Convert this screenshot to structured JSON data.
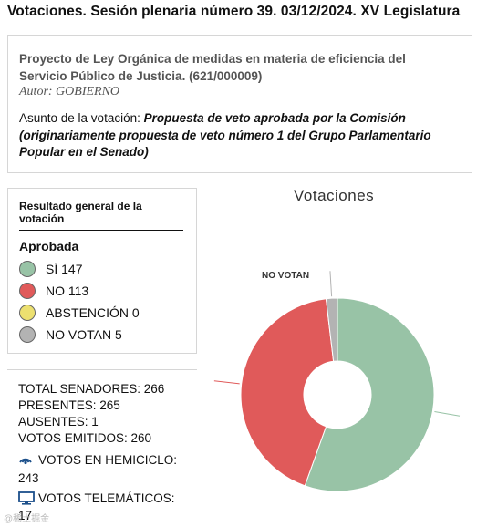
{
  "header": {
    "title": "Votaciones. Sesión plenaria número 39. 03/12/2024. XV  Legislatura"
  },
  "project": {
    "title": "Proyecto de Ley Orgánica de medidas en materia de eficiencia del Servicio Público de Justicia. (621/000009)",
    "author": "Autor: GOBIERNO",
    "asunto_label": "Asunto de la votación: ",
    "asunto_text": "Propuesta de veto aprobada por la Comisión (originariamente propuesta de veto número 1 del Grupo Parlamentario Popular en el Senado)"
  },
  "result": {
    "heading": "Resultado general de la votación",
    "status": "Aprobada",
    "items": [
      {
        "label": "SÍ 147",
        "color": "#98c3a6"
      },
      {
        "label": "NO 113",
        "color": "#e05a5a"
      },
      {
        "label": "ABSTENCIÓN 0",
        "color": "#ece070"
      },
      {
        "label": "NO VOTAN 5",
        "color": "#b3b3b3"
      }
    ]
  },
  "stats": {
    "total": "TOTAL SENADORES: 266",
    "presentes": "PRESENTES: 265",
    "ausentes": "AUSENTES: 1",
    "emitidos": "VOTOS EMITIDOS: 260",
    "hemiciclo_label": "VOTOS EN HEMICICLO:",
    "hemiciclo_value": "243",
    "telematicos_label": "VOTOS TELEMÁTICOS:",
    "telematicos_value": "17",
    "hemiciclo_icon": "wireless-signal-icon",
    "telematicos_icon": "monitor-icon"
  },
  "chart_data": {
    "type": "pie",
    "title": "Votaciones",
    "slices": [
      {
        "label": "SÍ",
        "value": 147,
        "color": "#98c3a6"
      },
      {
        "label": "NO",
        "value": 113,
        "color": "#e05a5a"
      },
      {
        "label": "ABSTENCIÓN",
        "value": 0,
        "color": "#ece070"
      },
      {
        "label": "NO VOTAN",
        "value": 5,
        "color": "#b3b3b3"
      }
    ],
    "annotation": "NO VOTAN",
    "donut": true
  },
  "watermark": "@稀土掘金"
}
